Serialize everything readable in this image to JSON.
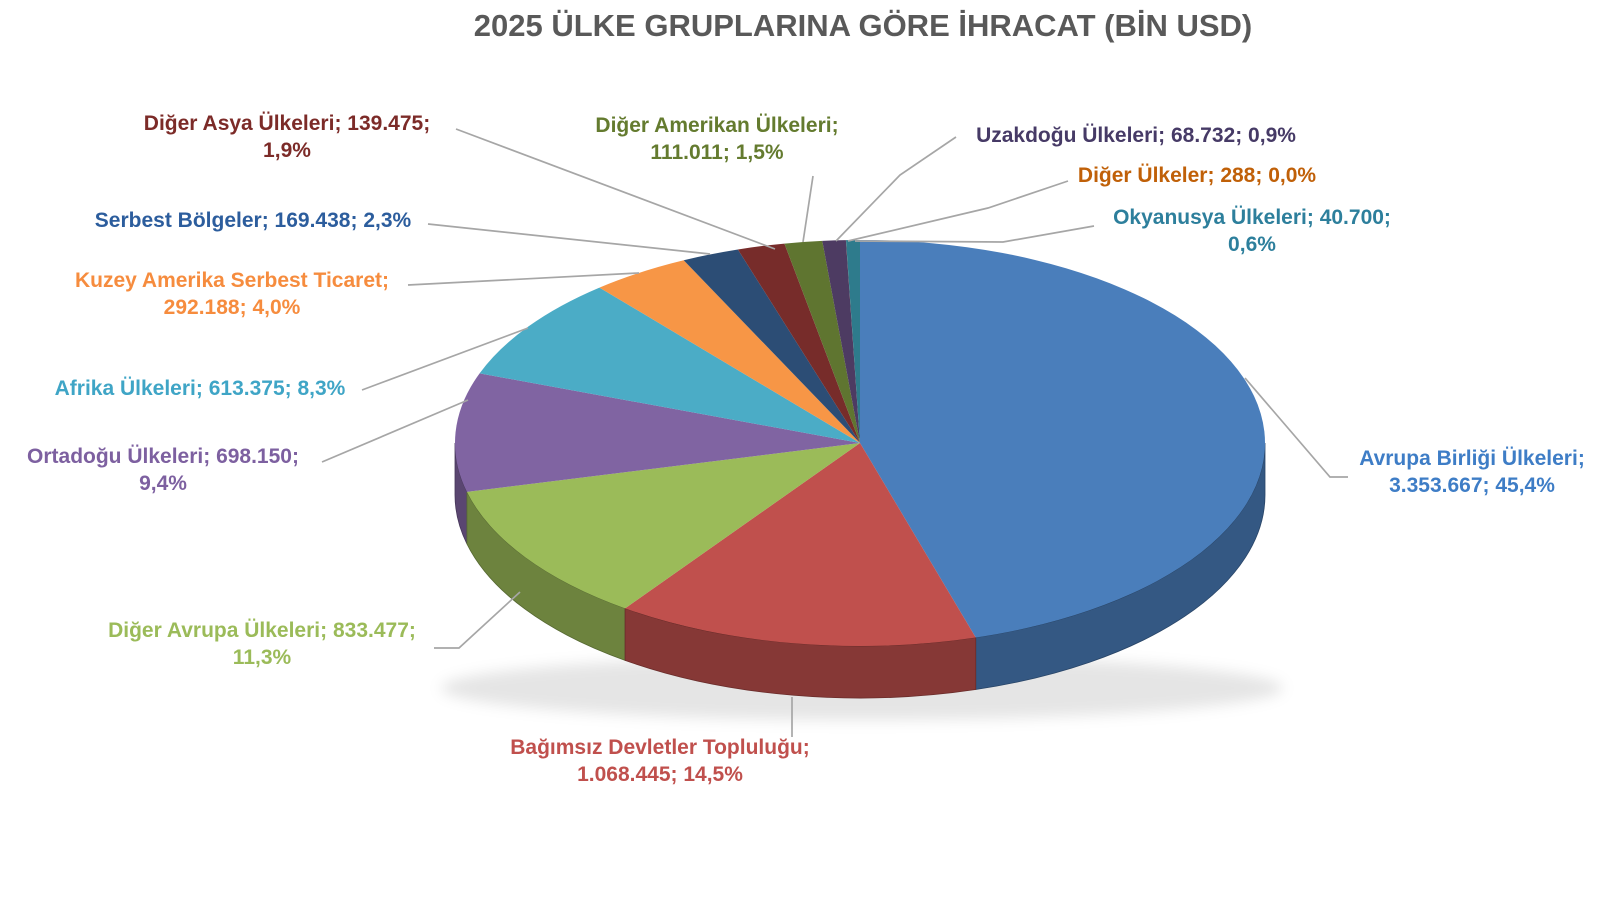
{
  "page": {
    "background": "#ffffff"
  },
  "chart_data": {
    "type": "pie",
    "style": "3d-pie",
    "title": "2025 ÜLKE GRUPLARINA GÖRE İHRACAT (BİN USD)",
    "title_color": "#595959",
    "value_unit": "BİN USD",
    "legend_position": "none",
    "leader_line_color": "#a6a6a6",
    "label_format": "name; value; percent",
    "slices": [
      {
        "label": "Avrupa Birliği Ülkeleri",
        "value": 3353667,
        "value_str": "3.353.667",
        "pct_str": "45,4%",
        "color": "#4a7ebb",
        "label_color": "#3e7dc6"
      },
      {
        "label": "Bağımsız Devletler Topluluğu",
        "value": 1068445,
        "value_str": "1.068.445",
        "pct_str": "14,5%",
        "color": "#c0504d",
        "label_color": "#c0504d"
      },
      {
        "label": "Diğer Avrupa Ülkeleri",
        "value": 833477,
        "value_str": "833.477",
        "pct_str": "11,3%",
        "color": "#9bbb59",
        "label_color": "#9bbb59"
      },
      {
        "label": "Ortadoğu Ülkeleri",
        "value": 698150,
        "value_str": "698.150",
        "pct_str": "9,4%",
        "color": "#8064a2",
        "label_color": "#7d60a0"
      },
      {
        "label": "Afrika Ülkeleri",
        "value": 613375,
        "value_str": "613.375",
        "pct_str": "8,3%",
        "color": "#4bacc6",
        "label_color": "#3fa5c6"
      },
      {
        "label": "Kuzey Amerika Serbest Ticaret",
        "value": 292188,
        "value_str": "292.188",
        "pct_str": "4,0%",
        "color": "#f79646",
        "label_color": "#f68c3e"
      },
      {
        "label": "Serbest Bölgeler",
        "value": 169438,
        "value_str": "169.438",
        "pct_str": "2,3%",
        "color": "#2c4d75",
        "label_color": "#2c5d9d"
      },
      {
        "label": "Diğer Asya Ülkeleri",
        "value": 139475,
        "value_str": "139.475",
        "pct_str": "1,9%",
        "color": "#772c2a",
        "label_color": "#7c2b28"
      },
      {
        "label": "Diğer Amerikan Ülkeleri",
        "value": 111011,
        "value_str": "111.011",
        "pct_str": "1,5%",
        "color": "#5f7530",
        "label_color": "#647b2f"
      },
      {
        "label": "Uzakdoğu Ülkeleri",
        "value": 68732,
        "value_str": "68.732",
        "pct_str": "0,9%",
        "color": "#4d3b62",
        "label_color": "#463a66"
      },
      {
        "label": "Diğer Ülkeler",
        "value": 288,
        "value_str": "288",
        "pct_str": "0,0%",
        "color": "#b65708",
        "label_color": "#c06008"
      },
      {
        "label": "Okyanusya Ülkeleri",
        "value": 40700,
        "value_str": "40.700",
        "pct_str": "0,6%",
        "color": "#2e7b8c",
        "label_color": "#2d7f9c"
      }
    ]
  }
}
